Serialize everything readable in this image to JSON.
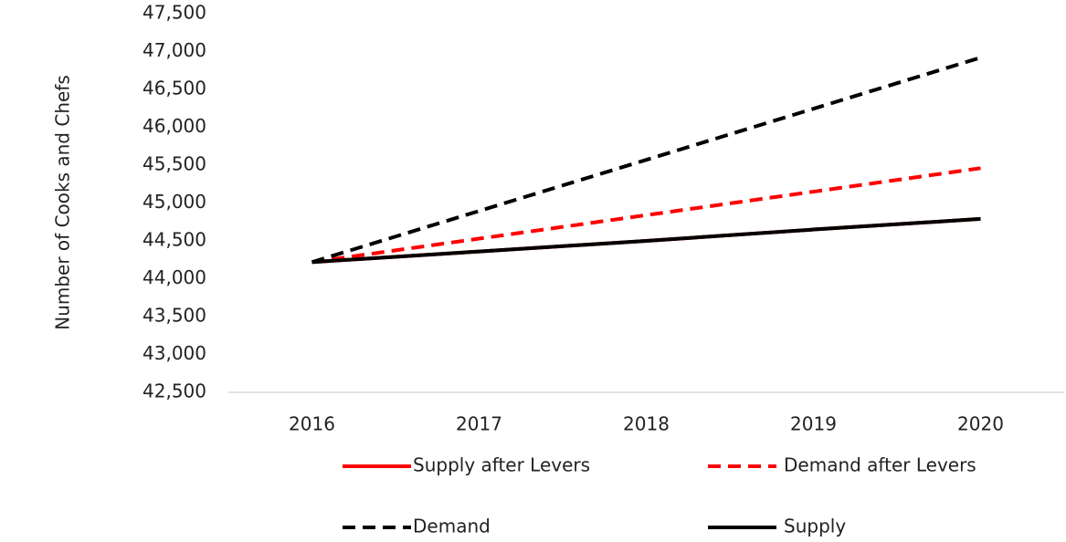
{
  "chart_data": {
    "type": "line",
    "y_label": "Number of Cooks and Chefs",
    "categories": [
      "2016",
      "2017",
      "2018",
      "2019",
      "2020"
    ],
    "series": [
      {
        "name": "Supply after Levers",
        "color": "#ff0000",
        "dashed": false,
        "values": [
          44220,
          44360,
          44500,
          44650,
          44790
        ]
      },
      {
        "name": "Demand after Levers",
        "color": "#ff0000",
        "dashed": true,
        "values": [
          44220,
          44530,
          44840,
          45150,
          45460
        ]
      },
      {
        "name": "Demand",
        "color": "#000000",
        "dashed": true,
        "values": [
          44220,
          44895,
          45570,
          46245,
          46920
        ]
      },
      {
        "name": "Supply",
        "color": "#000000",
        "dashed": false,
        "values": [
          44220,
          44360,
          44500,
          44650,
          44790
        ]
      }
    ],
    "ylim": [
      42500,
      47500
    ],
    "yticks": [
      {
        "value": 42500,
        "label": "42,500"
      },
      {
        "value": 43000,
        "label": "43,000"
      },
      {
        "value": 43500,
        "label": "43,500"
      },
      {
        "value": 44000,
        "label": "44,000"
      },
      {
        "value": 44500,
        "label": "44,500"
      },
      {
        "value": 45000,
        "label": "45,000"
      },
      {
        "value": 45500,
        "label": "45,500"
      },
      {
        "value": 46000,
        "label": "46,000"
      },
      {
        "value": 46500,
        "label": "46,500"
      },
      {
        "value": 47000,
        "label": "47,000"
      },
      {
        "value": 47500,
        "label": "47,500"
      }
    ],
    "grid": false,
    "legend": "bottom"
  }
}
